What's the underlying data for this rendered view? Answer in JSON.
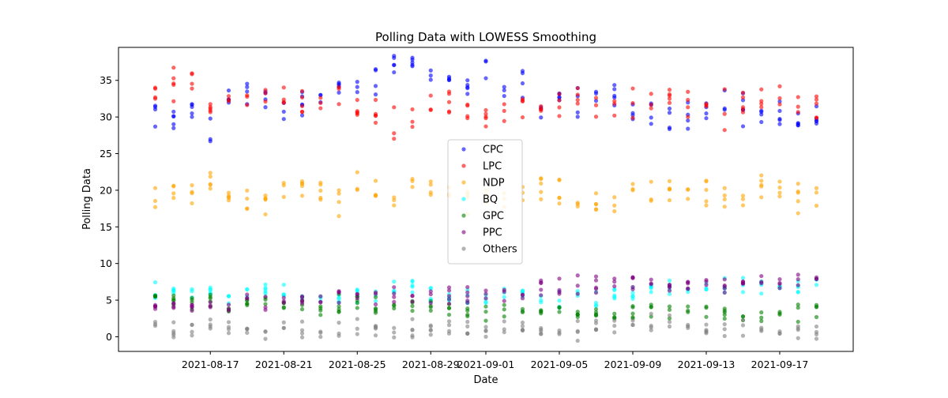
{
  "chart_data": {
    "type": "scatter",
    "title": "Polling Data with LOWESS Smoothing",
    "xlabel": "Date",
    "ylabel": "Polling Data",
    "x_ticks": [
      "2021-08-17",
      "2021-08-21",
      "2021-08-25",
      "2021-08-29",
      "2021-09-01",
      "2021-09-05",
      "2021-09-09",
      "2021-09-13",
      "2021-09-17"
    ],
    "y_ticks": [
      0,
      5,
      10,
      15,
      20,
      25,
      30,
      35
    ],
    "xlim": [
      "2021-08-12",
      "2021-09-21"
    ],
    "ylim": [
      -2,
      39.5
    ],
    "legend_position": "center",
    "grid": false,
    "x": [
      "2021-08-14",
      "2021-08-15",
      "2021-08-16",
      "2021-08-17",
      "2021-08-18",
      "2021-08-19",
      "2021-08-20",
      "2021-08-21",
      "2021-08-22",
      "2021-08-23",
      "2021-08-24",
      "2021-08-25",
      "2021-08-26",
      "2021-08-27",
      "2021-08-28",
      "2021-08-29",
      "2021-08-30",
      "2021-08-31",
      "2021-09-01",
      "2021-09-02",
      "2021-09-03",
      "2021-09-04",
      "2021-09-05",
      "2021-09-06",
      "2021-09-07",
      "2021-09-08",
      "2021-09-09",
      "2021-09-10",
      "2021-09-11",
      "2021-09-12",
      "2021-09-13",
      "2021-09-14",
      "2021-09-15",
      "2021-09-16",
      "2021-09-17",
      "2021-09-18",
      "2021-09-19"
    ],
    "series": [
      {
        "name": "CPC",
        "color": "#0000ff",
        "values": [
          30.2,
          29.5,
          31.0,
          28.5,
          32.5,
          33.0,
          32.0,
          30.5,
          32.0,
          33.5,
          34.0,
          34.5,
          35.0,
          36.5,
          37.0,
          36.5,
          35.0,
          34.0,
          35.5,
          33.5,
          34.5,
          32.5,
          33.5,
          32.0,
          33.0,
          32.5,
          31.0,
          30.5,
          30.0,
          30.5,
          31.0,
          31.5,
          31.0,
          30.5,
          29.5,
          28.5,
          30.0
        ]
      },
      {
        "name": "LPC",
        "color": "#ff0000",
        "values": [
          33.0,
          34.5,
          34.0,
          32.0,
          33.0,
          32.5,
          33.5,
          32.5,
          33.0,
          32.5,
          33.5,
          31.0,
          30.0,
          29.5,
          30.5,
          31.0,
          31.5,
          30.5,
          30.0,
          30.5,
          31.5,
          31.0,
          32.0,
          32.5,
          32.0,
          31.0,
          31.5,
          32.0,
          32.5,
          31.5,
          32.0,
          31.5,
          32.0,
          32.5,
          32.0,
          31.5,
          32.0
        ]
      },
      {
        "name": "NDP",
        "color": "#ffa500",
        "values": [
          19.0,
          20.5,
          20.0,
          20.5,
          19.5,
          19.0,
          18.5,
          19.5,
          20.0,
          19.5,
          19.0,
          19.5,
          19.5,
          19.0,
          21.0,
          20.5,
          20.0,
          19.5,
          19.5,
          19.0,
          19.5,
          20.0,
          19.5,
          19.0,
          18.5,
          18.5,
          19.0,
          19.5,
          20.0,
          19.5,
          20.0,
          19.5,
          20.0,
          20.0,
          19.5,
          19.0,
          18.5
        ]
      },
      {
        "name": "BQ",
        "color": "#00ffff",
        "values": [
          6.0,
          6.5,
          6.0,
          6.5,
          5.5,
          6.0,
          6.0,
          6.5,
          6.0,
          5.5,
          5.0,
          5.5,
          6.0,
          6.5,
          6.5,
          6.0,
          5.5,
          5.0,
          5.0,
          5.5,
          6.0,
          5.5,
          5.0,
          5.5,
          5.0,
          5.5,
          6.0,
          6.5,
          6.5,
          6.5,
          6.5,
          6.5,
          6.5,
          6.5,
          7.0,
          7.0,
          7.0
        ]
      },
      {
        "name": "GPC",
        "color": "#008000",
        "values": [
          5.5,
          5.0,
          4.5,
          4.5,
          4.0,
          4.5,
          4.5,
          4.0,
          4.5,
          4.0,
          4.0,
          4.5,
          4.0,
          3.5,
          4.0,
          4.0,
          3.5,
          3.5,
          3.5,
          4.0,
          4.0,
          3.5,
          3.0,
          3.0,
          3.5,
          3.0,
          3.0,
          3.5,
          3.5,
          3.5,
          3.5,
          3.5,
          3.0,
          3.0,
          3.0,
          3.5,
          3.5
        ]
      },
      {
        "name": "PPC",
        "color": "#800080",
        "values": [
          4.0,
          4.5,
          4.5,
          4.5,
          4.0,
          4.5,
          4.5,
          5.0,
          5.0,
          5.0,
          5.5,
          5.5,
          5.5,
          5.5,
          5.5,
          5.5,
          5.5,
          5.5,
          5.5,
          6.0,
          6.0,
          6.5,
          6.5,
          7.0,
          7.0,
          7.5,
          7.5,
          7.0,
          7.0,
          7.0,
          7.0,
          7.0,
          7.0,
          7.5,
          7.5,
          8.0,
          8.0
        ]
      },
      {
        "name": "Others",
        "color": "#808080",
        "values": [
          1.5,
          1.0,
          1.0,
          1.5,
          1.5,
          1.0,
          1.0,
          1.5,
          1.0,
          1.0,
          1.0,
          1.0,
          1.0,
          0.5,
          1.0,
          1.0,
          1.0,
          1.0,
          1.0,
          1.0,
          1.0,
          1.0,
          1.0,
          1.0,
          1.5,
          1.5,
          1.5,
          1.5,
          1.5,
          1.5,
          1.0,
          1.0,
          1.0,
          1.0,
          1.0,
          1.0,
          1.0
        ]
      }
    ]
  }
}
